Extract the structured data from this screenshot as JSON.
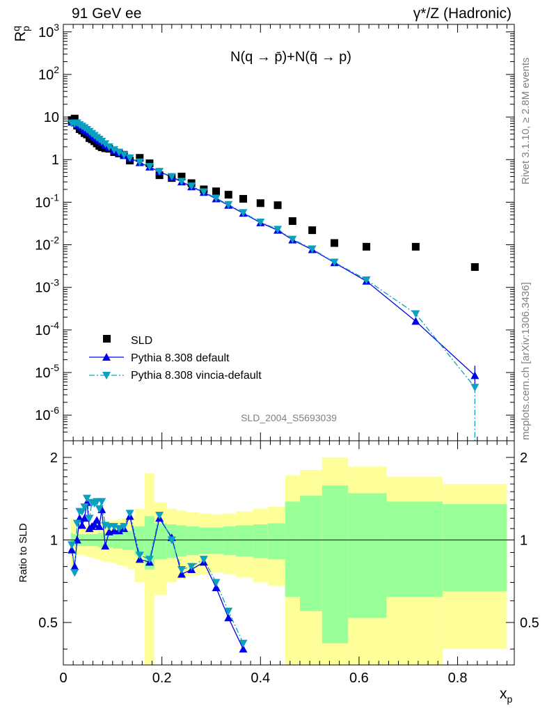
{
  "header": {
    "left": "91 GeV ee",
    "right": "γ*/Z (Hadronic)"
  },
  "side_labels": {
    "top": "Rivet 3.1.10, ≥ 2.8M events",
    "bottom": "mcplots.cern.ch [arXiv:1306.3436]"
  },
  "watermark": "SLD_2004_S5693039",
  "colors": {
    "sld": "#000000",
    "default": "#0000ee",
    "vincia": "#0aa0c0",
    "band_inner": "#99ff99",
    "band_outer": "#ffff99"
  },
  "chart_data": [
    {
      "type": "scatter",
      "title": "N(q → p̄)+N(q̄ → p)",
      "ylabel": "R_p^q",
      "yscale": "log",
      "ylim": [
        2.5e-07,
        1500
      ],
      "xlim": [
        0,
        0.915
      ],
      "y_ticks": [
        {
          "v": 1e-06,
          "label": "10^-6"
        },
        {
          "v": 1e-05,
          "label": "10^-5"
        },
        {
          "v": 0.0001,
          "label": "10^-4"
        },
        {
          "v": 0.001,
          "label": "10^-3"
        },
        {
          "v": 0.01,
          "label": "10^-2"
        },
        {
          "v": 0.1,
          "label": "10^-1"
        },
        {
          "v": 1,
          "label": "1"
        },
        {
          "v": 10,
          "label": "10"
        },
        {
          "v": 100,
          "label": "10^2"
        },
        {
          "v": 1000,
          "label": "10^3"
        }
      ],
      "legend": {
        "position": "bottom-left",
        "entries": [
          "SLD",
          "Pythia 8.308 default",
          "Pythia 8.308 vincia-default"
        ]
      },
      "series": [
        {
          "name": "SLD",
          "style": "square-marker",
          "x": [
            0.017,
            0.023,
            0.028,
            0.033,
            0.038,
            0.043,
            0.048,
            0.053,
            0.058,
            0.063,
            0.068,
            0.073,
            0.078,
            0.085,
            0.093,
            0.103,
            0.113,
            0.123,
            0.135,
            0.155,
            0.175,
            0.195,
            0.22,
            0.24,
            0.26,
            0.285,
            0.31,
            0.335,
            0.365,
            0.4,
            0.435,
            0.465,
            0.505,
            0.55,
            0.615,
            0.715,
            0.835
          ],
          "y": [
            8.5,
            9.2,
            6.3,
            5.2,
            4.8,
            4.2,
            3.9,
            3.2,
            3.0,
            2.7,
            2.4,
            2.1,
            1.95,
            1.85,
            1.8,
            1.5,
            1.4,
            1.3,
            0.95,
            1.1,
            0.82,
            0.43,
            0.37,
            0.4,
            0.28,
            0.2,
            0.18,
            0.15,
            0.12,
            0.095,
            0.085,
            0.036,
            0.022,
            0.011,
            0.009,
            0.009,
            0.003
          ]
        },
        {
          "name": "Pythia 8.308 default",
          "style": "solid-line triangle-up",
          "x": [
            0.017,
            0.023,
            0.028,
            0.033,
            0.038,
            0.043,
            0.048,
            0.053,
            0.058,
            0.063,
            0.068,
            0.073,
            0.078,
            0.085,
            0.093,
            0.103,
            0.113,
            0.123,
            0.135,
            0.155,
            0.175,
            0.195,
            0.22,
            0.24,
            0.26,
            0.285,
            0.31,
            0.335,
            0.365,
            0.4,
            0.435,
            0.465,
            0.505,
            0.55,
            0.615,
            0.715,
            0.835
          ],
          "y": [
            7.6,
            7.3,
            6.7,
            6.1,
            5.6,
            5.1,
            4.6,
            4.2,
            3.8,
            3.4,
            3.1,
            2.8,
            2.5,
            2.2,
            1.95,
            1.65,
            1.45,
            1.25,
            1.08,
            0.85,
            0.67,
            0.52,
            0.39,
            0.3,
            0.23,
            0.17,
            0.12,
            0.085,
            0.055,
            0.033,
            0.022,
            0.013,
            0.0077,
            0.0038,
            0.0014,
            0.00016,
            8.5e-06
          ],
          "y_err_last": [
            4.5e-06,
            1.45e-05
          ]
        },
        {
          "name": "Pythia 8.308 vincia-default",
          "style": "dash-dot-line triangle-down",
          "x": [
            0.017,
            0.023,
            0.028,
            0.033,
            0.038,
            0.043,
            0.048,
            0.053,
            0.058,
            0.063,
            0.068,
            0.073,
            0.078,
            0.085,
            0.093,
            0.103,
            0.113,
            0.123,
            0.135,
            0.155,
            0.175,
            0.195,
            0.22,
            0.24,
            0.26,
            0.285,
            0.31,
            0.335,
            0.365,
            0.4,
            0.435,
            0.465,
            0.505,
            0.55,
            0.615,
            0.715,
            0.835
          ],
          "y": [
            7.2,
            7.0,
            7.3,
            6.6,
            6.1,
            5.6,
            5.1,
            4.6,
            4.1,
            3.7,
            3.3,
            3.0,
            2.7,
            2.35,
            2.0,
            1.7,
            1.5,
            1.3,
            1.1,
            0.88,
            0.69,
            0.53,
            0.4,
            0.31,
            0.24,
            0.175,
            0.125,
            0.088,
            0.057,
            0.034,
            0.023,
            0.0135,
            0.008,
            0.0039,
            0.0015,
            0.00024,
            4.5e-06
          ],
          "last_to_axis": true
        }
      ]
    },
    {
      "type": "line",
      "ylabel": "Ratio to SLD",
      "xlabel": "x_p",
      "xlim": [
        0,
        0.915
      ],
      "ylim": [
        0.35,
        2.3
      ],
      "x_ticks": [
        0,
        0.2,
        0.4,
        0.6,
        0.8
      ],
      "y_ticks": [
        0.5,
        1,
        2
      ],
      "bands": {
        "edges": [
          0.015,
          0.02,
          0.025,
          0.03,
          0.035,
          0.04,
          0.045,
          0.05,
          0.055,
          0.06,
          0.065,
          0.07,
          0.075,
          0.08,
          0.09,
          0.1,
          0.11,
          0.12,
          0.13,
          0.145,
          0.165,
          0.185,
          0.21,
          0.23,
          0.25,
          0.275,
          0.3,
          0.325,
          0.35,
          0.385,
          0.415,
          0.45,
          0.48,
          0.525,
          0.578,
          0.656,
          0.77,
          0.9
        ],
        "inner": [
          0.06,
          0.05,
          0.05,
          0.05,
          0.05,
          0.05,
          0.05,
          0.05,
          0.05,
          0.05,
          0.05,
          0.06,
          0.06,
          0.06,
          0.06,
          0.07,
          0.07,
          0.08,
          0.08,
          0.12,
          0.22,
          0.15,
          0.14,
          0.13,
          0.12,
          0.11,
          0.11,
          0.12,
          0.13,
          0.14,
          0.15,
          0.38,
          0.45,
          0.58,
          0.48,
          0.38,
          0.35,
          0.35
        ],
        "outer": [
          0.2,
          0.15,
          0.12,
          0.12,
          0.12,
          0.12,
          0.13,
          0.13,
          0.14,
          0.14,
          0.15,
          0.15,
          0.16,
          0.17,
          0.17,
          0.18,
          0.19,
          0.2,
          0.22,
          0.3,
          0.75,
          0.37,
          0.3,
          0.28,
          0.26,
          0.25,
          0.24,
          0.25,
          0.27,
          0.3,
          0.32,
          0.72,
          0.8,
          1.0,
          0.85,
          0.7,
          0.6,
          0.6
        ]
      },
      "series": [
        {
          "name": "Pythia 8.308 default",
          "x": [
            0.017,
            0.023,
            0.028,
            0.033,
            0.038,
            0.043,
            0.048,
            0.053,
            0.058,
            0.063,
            0.068,
            0.073,
            0.078,
            0.085,
            0.093,
            0.103,
            0.113,
            0.123,
            0.135,
            0.155,
            0.175,
            0.195,
            0.22,
            0.24,
            0.26,
            0.285,
            0.31,
            0.335,
            0.365
          ],
          "y": [
            0.92,
            0.8,
            1.0,
            1.2,
            1.13,
            1.2,
            1.37,
            1.1,
            1.12,
            1.14,
            1.18,
            1.12,
            1.29,
            0.95,
            1.07,
            1.08,
            1.08,
            1.1,
            1.22,
            0.85,
            0.83,
            1.2,
            1.02,
            0.75,
            0.78,
            0.83,
            0.67,
            0.52,
            0.4
          ]
        },
        {
          "name": "Pythia 8.308 vincia-default",
          "x": [
            0.017,
            0.023,
            0.028,
            0.033,
            0.038,
            0.043,
            0.048,
            0.053,
            0.058,
            0.063,
            0.068,
            0.073,
            0.078,
            0.085,
            0.093,
            0.103,
            0.113,
            0.123,
            0.135,
            0.155,
            0.175,
            0.195,
            0.22,
            0.24,
            0.26,
            0.285,
            0.31,
            0.335,
            0.365
          ],
          "y": [
            0.96,
            0.76,
            1.15,
            1.27,
            1.27,
            1.32,
            1.42,
            1.2,
            1.37,
            1.36,
            1.38,
            1.3,
            1.38,
            1.13,
            1.12,
            1.12,
            1.1,
            1.12,
            1.25,
            0.88,
            0.85,
            1.23,
            1.0,
            0.78,
            0.8,
            0.85,
            0.7,
            0.55,
            0.42
          ]
        }
      ]
    }
  ]
}
